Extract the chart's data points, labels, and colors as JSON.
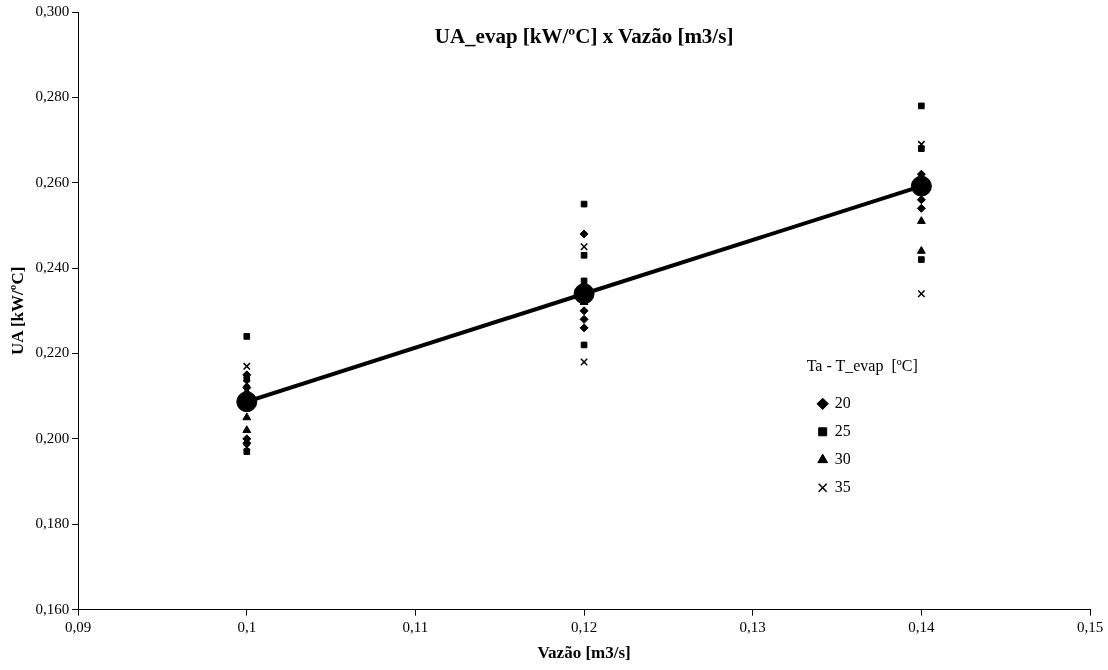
{
  "chart_data": {
    "type": "scatter",
    "title": "UA_evap [kW/ºC] x Vazão [m3/s]",
    "xlabel": "Vazão [m3/s]",
    "ylabel": "UA [kW/ºC]",
    "legend_title": "Ta - T_evap  [ºC]",
    "legend": "right",
    "grid": false,
    "xlim": [
      0.09,
      0.15
    ],
    "xticks": [
      {
        "value": 0.09,
        "label": "0,09"
      },
      {
        "value": 0.1,
        "label": "0,1"
      },
      {
        "value": 0.11,
        "label": "0,11"
      },
      {
        "value": 0.12,
        "label": "0,12"
      },
      {
        "value": 0.13,
        "label": "0,13"
      },
      {
        "value": 0.14,
        "label": "0,14"
      },
      {
        "value": 0.15,
        "label": "0,15"
      }
    ],
    "ylim": [
      0.16,
      0.3
    ],
    "yticks": [
      {
        "value": 0.16,
        "label": "0,160"
      },
      {
        "value": 0.18,
        "label": "0,180"
      },
      {
        "value": 0.2,
        "label": "0,200"
      },
      {
        "value": 0.22,
        "label": "0,220"
      },
      {
        "value": 0.24,
        "label": "0,240"
      },
      {
        "value": 0.26,
        "label": "0,260"
      },
      {
        "value": 0.28,
        "label": "0,280"
      },
      {
        "value": 0.3,
        "label": "0,300"
      }
    ],
    "series": [
      {
        "name": "20",
        "color": "#000000",
        "marker": "diamond",
        "x": [
          0.1,
          0.1,
          0.1,
          0.1,
          0.12,
          0.12,
          0.12,
          0.12,
          0.14,
          0.14,
          0.14
        ],
        "values": [
          0.215,
          0.212,
          0.2,
          0.199,
          0.248,
          0.23,
          0.228,
          0.226,
          0.262,
          0.256,
          0.254
        ]
      },
      {
        "name": "25",
        "color": "#000000",
        "marker": "square",
        "x": [
          0.1,
          0.1,
          0.1,
          0.12,
          0.12,
          0.12,
          0.12,
          0.14,
          0.14,
          0.14
        ],
        "values": [
          0.224,
          0.214,
          0.197,
          0.255,
          0.243,
          0.237,
          0.222,
          0.278,
          0.268,
          0.242
        ]
      },
      {
        "name": "30",
        "color": "#000000",
        "marker": "triangle",
        "x": [
          0.1,
          0.1,
          0.1,
          0.12,
          0.12,
          0.14,
          0.14
        ],
        "values": [
          0.211,
          0.205,
          0.202,
          0.236,
          0.232,
          0.251,
          0.244
        ]
      },
      {
        "name": "35",
        "color": "#000000",
        "marker": "cross",
        "x": [
          0.1,
          0.1,
          0.1,
          0.12,
          0.12,
          0.14,
          0.14
        ],
        "values": [
          0.217,
          0.213,
          0.198,
          0.245,
          0.218,
          0.269,
          0.234
        ]
      },
      {
        "type": "line",
        "color": "#000000",
        "marker": "circle",
        "line_style": "solid",
        "x": [
          0.1,
          0.12,
          0.14
        ],
        "values": [
          0.2087,
          0.234,
          0.2592
        ]
      }
    ]
  }
}
